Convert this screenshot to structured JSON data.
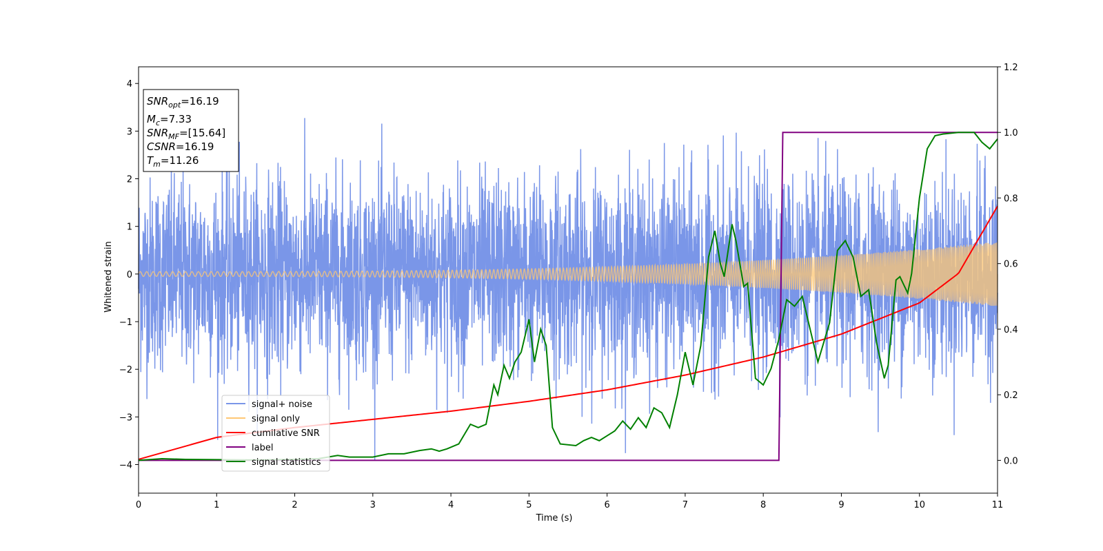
{
  "chart_data": {
    "type": "line",
    "xlabel": "Time (s)",
    "ylabel": "Whitened strain",
    "xlim": [
      0,
      11
    ],
    "ylim": [
      -4.6,
      4.35
    ],
    "y2lim": [
      -0.1,
      1.2
    ],
    "x_ticks": [
      "0",
      "1",
      "2",
      "3",
      "4",
      "5",
      "6",
      "7",
      "8",
      "9",
      "10",
      "11"
    ],
    "y_ticks": [
      "4",
      "3",
      "2",
      "1",
      "0",
      "−1",
      "−2",
      "−3",
      "−4"
    ],
    "y2_ticks": [
      "1.2",
      "1.0",
      "0.8",
      "0.6",
      "0.4",
      "0.2",
      "0.0"
    ],
    "grid": false,
    "legend_position": "lower-left",
    "info_box": {
      "snr_opt": {
        "base": "SNR",
        "sub": "opt",
        "value": "=16.19"
      },
      "mc": {
        "base": "M",
        "sub": "c",
        "value": "=7.33"
      },
      "snr_mf": {
        "base": "SNR",
        "sub": "MF",
        "value": "=[15.64]"
      },
      "csnr": {
        "base": "CSNR",
        "sub": "",
        "value": "=16.19"
      },
      "tm": {
        "base": "T",
        "sub": "m",
        "value": "=11.26"
      }
    },
    "series": [
      {
        "name": "signal+ noise",
        "color": "#7a96e8",
        "axis": "left",
        "description_envelope_max_abs": 3.9
      },
      {
        "name": "signal only",
        "color": "#ffc773",
        "axis": "left",
        "amplitude_start": 0.05,
        "amplitude_end": 0.68
      },
      {
        "name": "cumilative SNR",
        "color": "#ff0000",
        "axis": "right",
        "x": [
          0,
          1,
          2,
          3,
          4,
          5,
          6,
          7,
          8,
          9,
          10,
          10.5,
          11
        ],
        "y": [
          0.003,
          0.07,
          0.1,
          0.125,
          0.15,
          0.18,
          0.215,
          0.26,
          0.315,
          0.385,
          0.48,
          0.57,
          0.775
        ]
      },
      {
        "name": "label",
        "color": "#800080",
        "axis": "right",
        "x": [
          0,
          8.2,
          8.25,
          11
        ],
        "y": [
          0,
          0,
          1,
          1
        ]
      },
      {
        "name": "signal statistics",
        "color": "#008000",
        "axis": "right",
        "x": [
          0,
          0.3,
          0.6,
          1.0,
          1.5,
          2.0,
          2.3,
          2.55,
          2.7,
          3.0,
          3.2,
          3.4,
          3.6,
          3.75,
          3.85,
          3.95,
          4.1,
          4.25,
          4.35,
          4.45,
          4.55,
          4.6,
          4.68,
          4.75,
          4.82,
          4.9,
          5.0,
          5.07,
          5.15,
          5.22,
          5.3,
          5.4,
          5.6,
          5.7,
          5.8,
          5.9,
          6.0,
          6.1,
          6.2,
          6.3,
          6.4,
          6.5,
          6.6,
          6.7,
          6.8,
          6.9,
          7.0,
          7.1,
          7.2,
          7.3,
          7.38,
          7.45,
          7.5,
          7.6,
          7.65,
          7.75,
          7.8,
          7.9,
          8.0,
          8.1,
          8.2,
          8.3,
          8.4,
          8.5,
          8.6,
          8.7,
          8.75,
          8.85,
          8.95,
          9.05,
          9.15,
          9.25,
          9.35,
          9.45,
          9.55,
          9.6,
          9.7,
          9.75,
          9.85,
          9.9,
          10.0,
          10.1,
          10.2,
          10.3,
          10.5,
          10.7,
          10.8,
          10.9,
          11.0
        ],
        "y": [
          0.0,
          0.005,
          0.003,
          0.002,
          0.001,
          0.003,
          0.005,
          0.015,
          0.01,
          0.01,
          0.02,
          0.02,
          0.03,
          0.035,
          0.028,
          0.035,
          0.05,
          0.11,
          0.1,
          0.11,
          0.23,
          0.2,
          0.29,
          0.25,
          0.3,
          0.33,
          0.43,
          0.3,
          0.4,
          0.35,
          0.1,
          0.05,
          0.045,
          0.06,
          0.07,
          0.06,
          0.075,
          0.09,
          0.12,
          0.095,
          0.13,
          0.1,
          0.16,
          0.145,
          0.1,
          0.2,
          0.33,
          0.23,
          0.35,
          0.62,
          0.7,
          0.6,
          0.56,
          0.72,
          0.67,
          0.53,
          0.54,
          0.25,
          0.23,
          0.28,
          0.37,
          0.49,
          0.47,
          0.5,
          0.4,
          0.3,
          0.34,
          0.42,
          0.64,
          0.67,
          0.62,
          0.5,
          0.52,
          0.36,
          0.25,
          0.29,
          0.55,
          0.56,
          0.51,
          0.57,
          0.8,
          0.95,
          0.99,
          0.995,
          1.0,
          1.0,
          0.97,
          0.95,
          0.98
        ]
      }
    ]
  }
}
